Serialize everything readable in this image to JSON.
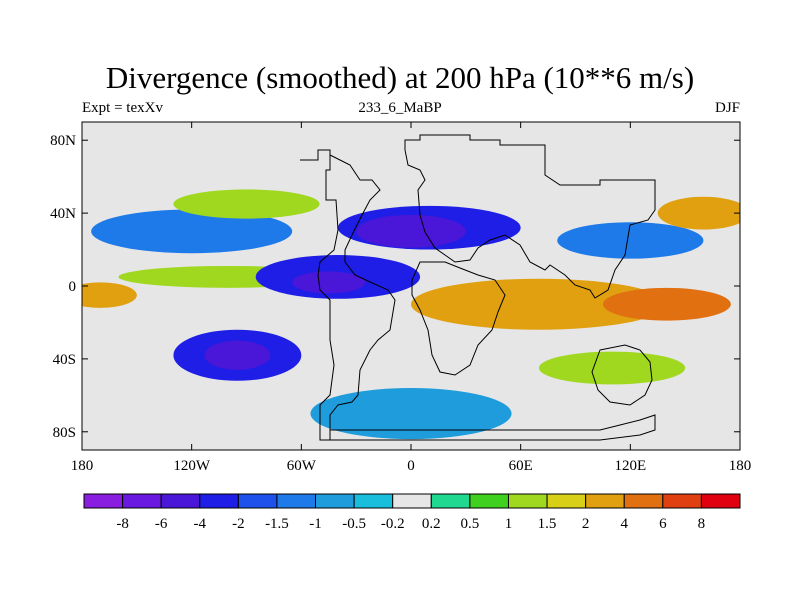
{
  "chart_data": {
    "type": "heatmap",
    "title": "Divergence (smoothed) at 200 hPa (10**6 m/s)",
    "left_label": "Expt = texXv",
    "center_label": "233_6_MaBP",
    "right_label": "DJF",
    "x_range": [
      -180,
      180
    ],
    "y_range": [
      -90,
      90
    ],
    "x_ticks": [
      {
        "value": -180,
        "label": "180"
      },
      {
        "value": -120,
        "label": "120W"
      },
      {
        "value": -60,
        "label": "60W"
      },
      {
        "value": 0,
        "label": "0"
      },
      {
        "value": 60,
        "label": "60E"
      },
      {
        "value": 120,
        "label": "120E"
      },
      {
        "value": 180,
        "label": "180"
      }
    ],
    "y_ticks": [
      {
        "value": 80,
        "label": "80N"
      },
      {
        "value": 40,
        "label": "40N"
      },
      {
        "value": 0,
        "label": "0"
      },
      {
        "value": -40,
        "label": "40S"
      },
      {
        "value": -80,
        "label": "80S"
      }
    ],
    "colorbar_levels": [
      "-8",
      "-6",
      "-4",
      "-2",
      "-1.5",
      "-1",
      "-0.5",
      "-0.2",
      "0.2",
      "0.5",
      "1",
      "1.5",
      "2",
      "4",
      "6",
      "8"
    ],
    "colorbar_colors": [
      "#8a1ee0",
      "#6a1ae0",
      "#4a16d8",
      "#1e1ee6",
      "#1e50ec",
      "#1e7ae8",
      "#1e9cdc",
      "#18bedc",
      "#e6e6e6",
      "#20d890",
      "#40d020",
      "#a0d820",
      "#d8d018",
      "#e0a010",
      "#e07010",
      "#e04010",
      "#e00010"
    ],
    "field_regions": [
      {
        "name": "neg-w-trop",
        "lon": -40,
        "lat": 5,
        "rlon": 45,
        "rlat": 12,
        "value": -3
      },
      {
        "name": "neg-w-trop-core",
        "lon": -45,
        "lat": 2,
        "rlon": 20,
        "rlat": 6,
        "value": -6
      },
      {
        "name": "neg-n-atlantic",
        "lon": 10,
        "lat": 32,
        "rlon": 50,
        "rlat": 12,
        "value": -3
      },
      {
        "name": "neg-n-atlantic-core",
        "lon": 0,
        "lat": 30,
        "rlon": 30,
        "rlat": 9,
        "value": -4.5
      },
      {
        "name": "neg-n-pacific",
        "lon": -120,
        "lat": 30,
        "rlon": 55,
        "rlat": 12,
        "value": -1.2
      },
      {
        "name": "neg-s-pacific",
        "lon": -95,
        "lat": -38,
        "rlon": 35,
        "rlat": 14,
        "value": -3
      },
      {
        "name": "neg-s-pacific-core",
        "lon": -95,
        "lat": -38,
        "rlon": 18,
        "rlat": 8,
        "value": -4.5
      },
      {
        "name": "neg-s-atlantic",
        "lon": 0,
        "lat": -70,
        "rlon": 55,
        "rlat": 14,
        "value": -1.0
      },
      {
        "name": "neg-e-asia",
        "lon": 120,
        "lat": 25,
        "rlon": 40,
        "rlat": 10,
        "value": -1.2
      },
      {
        "name": "pos-indian-ocean",
        "lon": 70,
        "lat": -10,
        "rlon": 70,
        "rlat": 14,
        "value": 2.5
      },
      {
        "name": "pos-w-pacific",
        "lon": 140,
        "lat": -10,
        "rlon": 35,
        "rlat": 9,
        "value": 4
      },
      {
        "name": "pos-n-pacific",
        "lon": 160,
        "lat": 40,
        "rlon": 25,
        "rlat": 9,
        "value": 2.2
      },
      {
        "name": "pos-n-atlantic",
        "lon": -90,
        "lat": 45,
        "rlon": 40,
        "rlat": 8,
        "value": 1.2
      },
      {
        "name": "pos-tropical-band",
        "lon": -100,
        "lat": 5,
        "rlon": 60,
        "rlat": 6,
        "value": 1.2
      },
      {
        "name": "pos-s-indian",
        "lon": 110,
        "lat": -45,
        "rlon": 40,
        "rlat": 9,
        "value": 1.2
      },
      {
        "name": "pos-e-pacific",
        "lon": -170,
        "lat": -5,
        "rlon": 20,
        "rlat": 7,
        "value": 2.2
      }
    ]
  }
}
